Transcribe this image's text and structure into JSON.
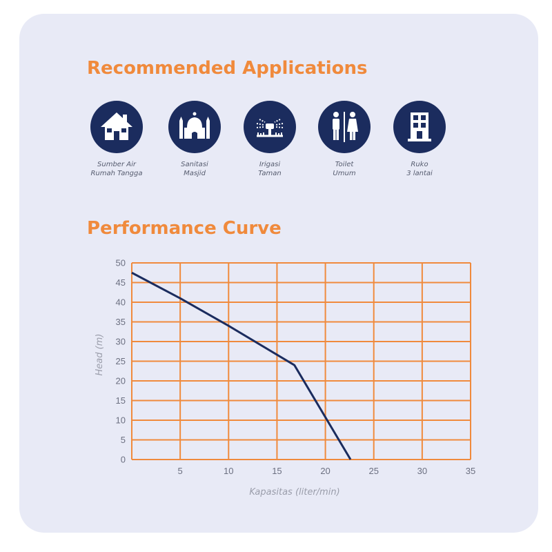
{
  "sections": {
    "applications_title": "Recommended Applications",
    "performance_title": "Performance Curve"
  },
  "applications": [
    {
      "icon": "house-icon",
      "line1": "Sumber Air",
      "line2": "Rumah Tangga"
    },
    {
      "icon": "mosque-icon",
      "line1": "Sanitasi",
      "line2": "Masjid"
    },
    {
      "icon": "sprinkler-icon",
      "line1": "Irigasi",
      "line2": "Taman"
    },
    {
      "icon": "restroom-icon",
      "line1": "Toilet",
      "line2": "Umum"
    },
    {
      "icon": "building-icon",
      "line1": "Ruko",
      "line2": "3 lantai"
    }
  ],
  "colors": {
    "accent": "#f08a3c",
    "navy": "#1b2c5e",
    "card_background": "#e8eaf6",
    "grid": "#f08a3c",
    "curve": "#1b2c5e"
  },
  "chart_data": {
    "type": "line",
    "title": "Performance Curve",
    "xlabel": "Kapasitas (liter/min)",
    "ylabel": "Head (m)",
    "xlim": [
      0,
      35
    ],
    "ylim": [
      0,
      50
    ],
    "x_ticks": [
      5,
      10,
      15,
      20,
      25,
      30,
      35
    ],
    "y_ticks": [
      0,
      5,
      10,
      15,
      20,
      25,
      30,
      35,
      40,
      45,
      50
    ],
    "grid": true,
    "series": [
      {
        "x": [
          0,
          5,
          10,
          16.8,
          22.6
        ],
        "y": [
          47.5,
          41,
          34,
          24,
          0
        ]
      }
    ]
  }
}
